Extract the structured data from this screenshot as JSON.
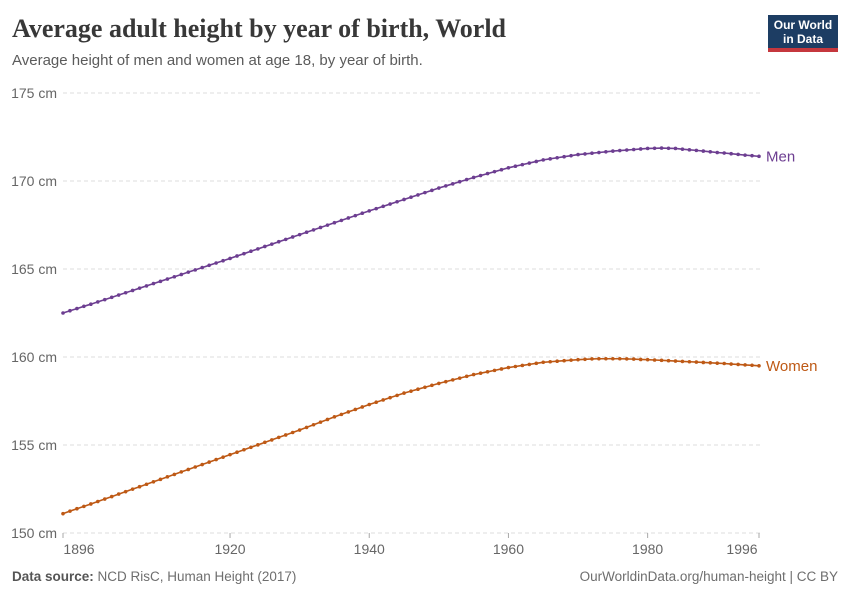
{
  "header": {
    "title": "Average adult height by year of birth, World",
    "subtitle": "Average height of men and women at age 18, by year of birth.",
    "logo": {
      "line1": "Our World",
      "line2": "in Data",
      "bg_color": "#1d3d63",
      "accent_color": "#c5373d"
    }
  },
  "footer": {
    "source_label": "Data source:",
    "source_value": " NCD RisC, Human Height (2017)",
    "credit": "OurWorldinData.org/human-height | CC BY"
  },
  "chart_data": {
    "type": "line",
    "title": "Average adult height by year of birth, World",
    "xlabel": "",
    "ylabel": "",
    "xlim": [
      1896,
      1996
    ],
    "ylim": [
      150,
      175
    ],
    "yticks": [
      150,
      155,
      160,
      165,
      170,
      175
    ],
    "ytick_labels": [
      "150 cm",
      "155 cm",
      "160 cm",
      "165 cm",
      "170 cm",
      "175 cm"
    ],
    "xticks": [
      1896,
      1920,
      1940,
      1960,
      1980,
      1996
    ],
    "grid": "horizontal-dashed",
    "marker": "point",
    "grid_color": "#dedede",
    "axis_text_color": "#666666",
    "x": [
      1896,
      1897,
      1898,
      1899,
      1900,
      1901,
      1902,
      1903,
      1904,
      1905,
      1906,
      1907,
      1908,
      1909,
      1910,
      1911,
      1912,
      1913,
      1914,
      1915,
      1916,
      1917,
      1918,
      1919,
      1920,
      1921,
      1922,
      1923,
      1924,
      1925,
      1926,
      1927,
      1928,
      1929,
      1930,
      1931,
      1932,
      1933,
      1934,
      1935,
      1936,
      1937,
      1938,
      1939,
      1940,
      1941,
      1942,
      1943,
      1944,
      1945,
      1946,
      1947,
      1948,
      1949,
      1950,
      1951,
      1952,
      1953,
      1954,
      1955,
      1956,
      1957,
      1958,
      1959,
      1960,
      1961,
      1962,
      1963,
      1964,
      1965,
      1966,
      1967,
      1968,
      1969,
      1970,
      1971,
      1972,
      1973,
      1974,
      1975,
      1976,
      1977,
      1978,
      1979,
      1980,
      1981,
      1982,
      1983,
      1984,
      1985,
      1986,
      1987,
      1988,
      1989,
      1990,
      1991,
      1992,
      1993,
      1994,
      1995,
      1996
    ],
    "series": [
      {
        "name": "Men",
        "color": "#6D3E91",
        "values": [
          162.5,
          162.63,
          162.75,
          162.88,
          163.0,
          163.13,
          163.26,
          163.39,
          163.52,
          163.65,
          163.78,
          163.91,
          164.04,
          164.17,
          164.3,
          164.43,
          164.56,
          164.69,
          164.82,
          164.95,
          165.08,
          165.21,
          165.34,
          165.47,
          165.6,
          165.74,
          165.87,
          166.01,
          166.14,
          166.28,
          166.41,
          166.55,
          166.68,
          166.82,
          166.95,
          167.09,
          167.22,
          167.36,
          167.49,
          167.63,
          167.76,
          167.9,
          168.03,
          168.17,
          168.3,
          168.43,
          168.56,
          168.69,
          168.82,
          168.95,
          169.08,
          169.21,
          169.34,
          169.47,
          169.6,
          169.72,
          169.84,
          169.96,
          170.08,
          170.2,
          170.31,
          170.42,
          170.53,
          170.64,
          170.75,
          170.84,
          170.93,
          171.02,
          171.11,
          171.2,
          171.26,
          171.32,
          171.38,
          171.44,
          171.5,
          171.54,
          171.58,
          171.62,
          171.66,
          171.7,
          171.73,
          171.76,
          171.79,
          171.82,
          171.85,
          171.86,
          171.87,
          171.86,
          171.85,
          171.81,
          171.77,
          171.74,
          171.7,
          171.66,
          171.62,
          171.59,
          171.55,
          171.51,
          171.47,
          171.44,
          171.4
        ]
      },
      {
        "name": "Women",
        "color": "#BE5915",
        "values": [
          151.1,
          151.24,
          151.38,
          151.51,
          151.65,
          151.79,
          151.93,
          152.07,
          152.21,
          152.35,
          152.49,
          152.63,
          152.77,
          152.91,
          153.05,
          153.19,
          153.33,
          153.47,
          153.61,
          153.75,
          153.89,
          154.03,
          154.17,
          154.31,
          154.45,
          154.59,
          154.73,
          154.87,
          155.01,
          155.15,
          155.29,
          155.43,
          155.57,
          155.71,
          155.85,
          156.0,
          156.15,
          156.3,
          156.45,
          156.6,
          156.74,
          156.88,
          157.02,
          157.16,
          157.3,
          157.43,
          157.56,
          157.69,
          157.82,
          157.95,
          158.06,
          158.17,
          158.28,
          158.39,
          158.5,
          158.6,
          158.7,
          158.8,
          158.9,
          159.0,
          159.08,
          159.16,
          159.24,
          159.32,
          159.4,
          159.46,
          159.52,
          159.58,
          159.64,
          159.7,
          159.73,
          159.76,
          159.79,
          159.82,
          159.85,
          159.87,
          159.89,
          159.9,
          159.9,
          159.9,
          159.9,
          159.89,
          159.88,
          159.86,
          159.85,
          159.83,
          159.81,
          159.79,
          159.77,
          159.75,
          159.73,
          159.71,
          159.69,
          159.67,
          159.65,
          159.63,
          159.6,
          159.58,
          159.55,
          159.53,
          159.5
        ]
      }
    ]
  }
}
